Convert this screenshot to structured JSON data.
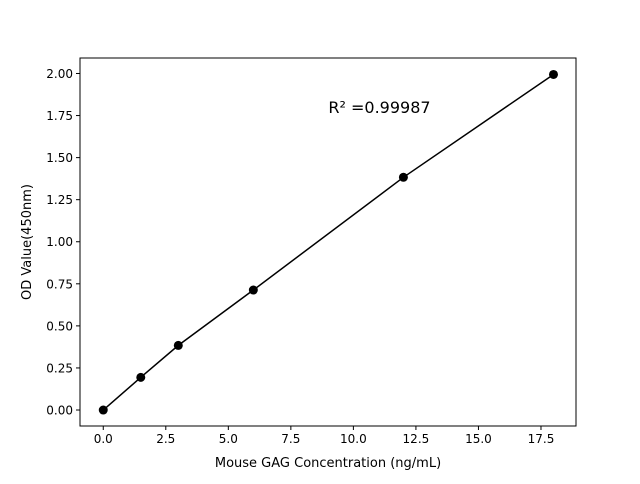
{
  "chart_data": {
    "type": "line",
    "title": "",
    "xlabel": "Mouse GAG Concentration (ng/mL)",
    "ylabel": "OD Value(450nm)",
    "x": [
      0,
      1.5,
      3,
      6,
      12,
      18
    ],
    "series": [
      {
        "values": [
          0.0,
          0.194,
          0.384,
          0.713,
          1.383,
          1.994
        ],
        "color": "#000000",
        "marker": "circle"
      }
    ],
    "xlim": [
      -0.93,
      18.9
    ],
    "ylim": [
      -0.095,
      2.092
    ],
    "xticks": [
      "0.0",
      "2.5",
      "5.0",
      "7.5",
      "10.0",
      "12.5",
      "15.0",
      "17.5"
    ],
    "xtick_values": [
      0,
      2.5,
      5,
      7.5,
      10,
      12.5,
      15,
      17.5
    ],
    "yticks": [
      "0.00",
      "0.25",
      "0.50",
      "0.75",
      "1.00",
      "1.25",
      "1.50",
      "1.75",
      "2.00"
    ],
    "ytick_values": [
      0,
      0.25,
      0.5,
      0.75,
      1,
      1.25,
      1.5,
      1.75,
      2
    ],
    "grid": false,
    "annotation": {
      "text": "R² =0.99987",
      "x": 9.0,
      "y": 1.8
    }
  }
}
